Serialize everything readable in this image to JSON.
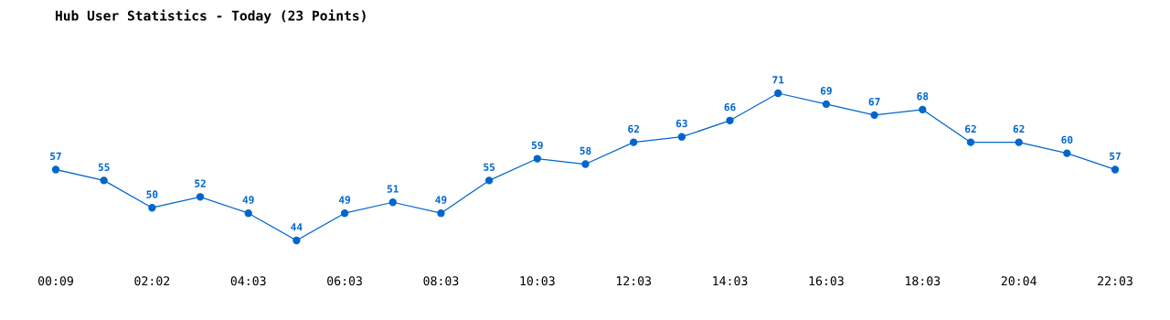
{
  "chart_data": {
    "type": "line",
    "title": "Hub User Statistics - Today (23 Points)",
    "categories": [
      "00:09",
      null,
      "02:02",
      null,
      "04:03",
      null,
      "06:03",
      null,
      "08:03",
      null,
      "10:03",
      null,
      "12:03",
      null,
      "14:03",
      null,
      "16:03",
      null,
      "18:03",
      null,
      "20:04",
      null,
      "22:03"
    ],
    "series": [
      {
        "color": "#0066cc",
        "values": [
          57,
          55,
          50,
          52,
          49,
          44,
          49,
          51,
          49,
          55,
          59,
          58,
          62,
          63,
          66,
          71,
          69,
          67,
          68,
          62,
          62,
          60,
          57
        ]
      }
    ],
    "data_labels": true,
    "marker": "circle",
    "line_style": "solid",
    "grid": false,
    "legend": false,
    "tick_labels": "x"
  }
}
